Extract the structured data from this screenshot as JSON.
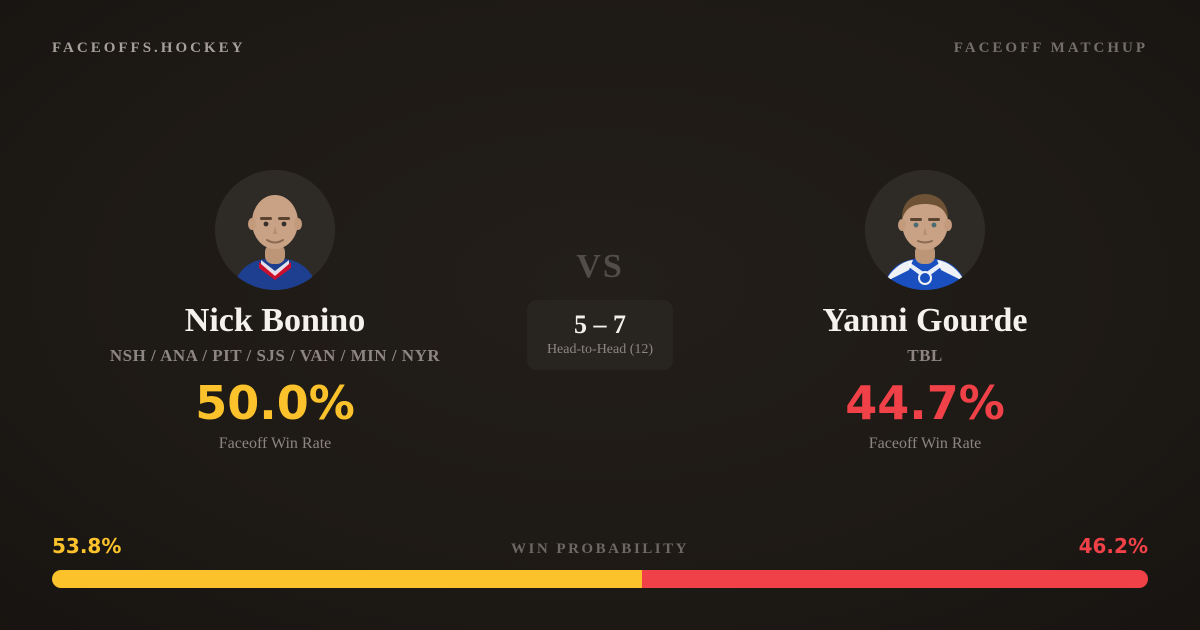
{
  "header": {
    "brand": "FACEOFFS.HOCKEY",
    "page_label": "FACEOFF MATCHUP"
  },
  "players": {
    "left": {
      "name": "Nick Bonino",
      "teams": "NSH / ANA / PIT / SJS / VAN / MIN / NYR",
      "faceoff_win_rate": "50.0%",
      "stat_label": "Faceoff Win Rate",
      "win_probability": "53.8%",
      "avatar_icon": "player-headshot-bald-blue-jersey"
    },
    "right": {
      "name": "Yanni Gourde",
      "teams": "TBL",
      "faceoff_win_rate": "44.7%",
      "stat_label": "Faceoff Win Rate",
      "win_probability": "46.2%",
      "avatar_icon": "player-headshot-brown-hair-blue-jersey"
    }
  },
  "center": {
    "vs_label": "VS",
    "head_to_head_score": "5 – 7",
    "head_to_head_label": "Head-to-Head (12)"
  },
  "win_probability": {
    "label": "WIN PROBABILITY",
    "left_value": 53.8,
    "right_value": 46.2
  },
  "colors": {
    "gold": "#fbc22b",
    "red": "#ef4147",
    "background": "#1d1915",
    "card": "#282420"
  },
  "chart_data": {
    "type": "bar",
    "title": "WIN PROBABILITY",
    "categories": [
      "Nick Bonino",
      "Yanni Gourde"
    ],
    "series": [
      {
        "name": "Win Probability %",
        "values": [
          53.8,
          46.2
        ]
      },
      {
        "name": "Faceoff Win Rate %",
        "values": [
          50.0,
          44.7
        ]
      },
      {
        "name": "Head-to-Head Wins (of 12)",
        "values": [
          5,
          7
        ]
      }
    ],
    "legend_position": "none",
    "orientation": "horizontal-stacked",
    "xlim": [
      0,
      100
    ]
  }
}
